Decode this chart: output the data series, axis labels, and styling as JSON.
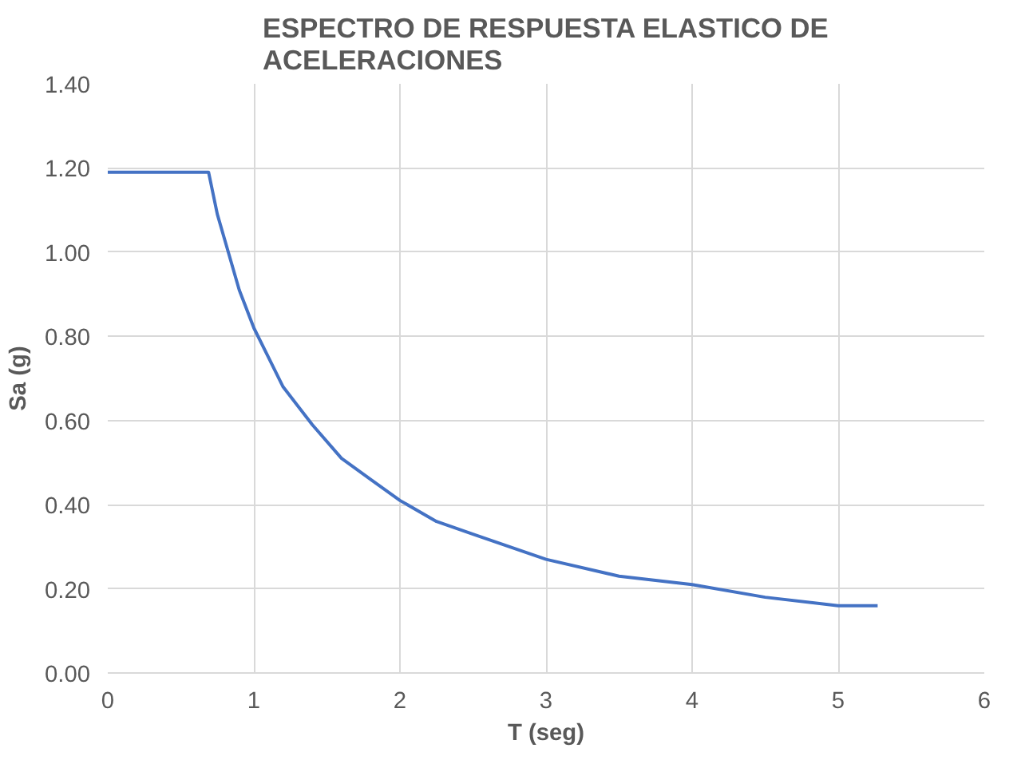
{
  "chart_data": {
    "type": "line",
    "title": "ESPECTRO DE RESPUESTA ELASTICO DE\nACELERACIONES",
    "xlabel": "T (seg)",
    "ylabel": "Sa (g)",
    "x": [
      0,
      0.69,
      0.75,
      0.8,
      0.9,
      1.0,
      1.1,
      1.2,
      1.4,
      1.6,
      1.8,
      2.0,
      2.25,
      2.5,
      2.75,
      3.0,
      3.5,
      4.0,
      4.5,
      5.0,
      5.27
    ],
    "series": [
      {
        "color": "#4472c4",
        "values": [
          1.19,
          1.19,
          1.09,
          1.03,
          0.91,
          0.82,
          0.75,
          0.68,
          0.59,
          0.51,
          0.46,
          0.41,
          0.36,
          0.33,
          0.3,
          0.27,
          0.23,
          0.21,
          0.18,
          0.16,
          0.16
        ]
      }
    ],
    "xlim": [
      0,
      6
    ],
    "xticks": [
      0,
      1,
      2,
      3,
      4,
      5,
      6
    ],
    "ylim": [
      0,
      1.4
    ],
    "yticks": [
      {
        "value": 0,
        "label": "0.00"
      },
      {
        "value": 0.2,
        "label": "0.20"
      },
      {
        "value": 0.4,
        "label": "0.40"
      },
      {
        "value": 0.6,
        "label": "0.60"
      },
      {
        "value": 0.8,
        "label": "0.80"
      },
      {
        "value": 1.0,
        "label": "1.00"
      },
      {
        "value": 1.2,
        "label": "1.20"
      },
      {
        "value": 1.4,
        "label": "1.40"
      }
    ],
    "grid": true,
    "marker": "none",
    "line_style": "solid"
  }
}
